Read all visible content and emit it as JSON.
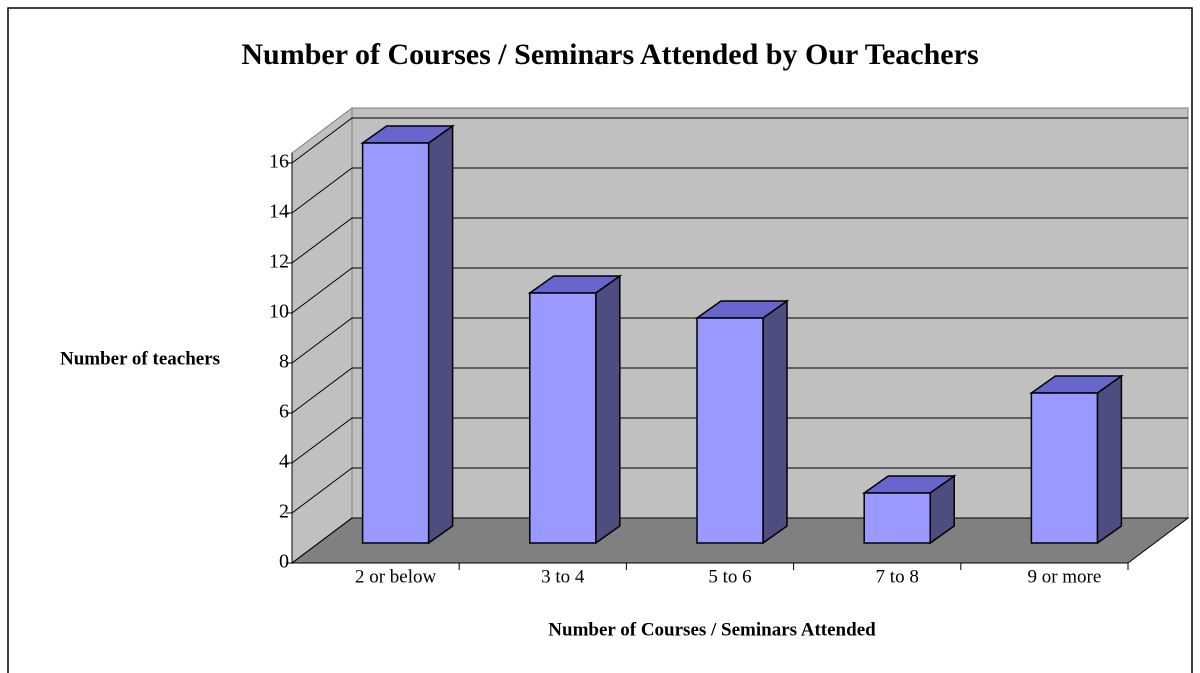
{
  "chart_data": {
    "type": "bar3d",
    "title": "Number of Courses / Seminars Attended by Our Teachers",
    "x_label": "Number of Courses / Seminars Attended",
    "y_label": "Number of teachers",
    "categories": [
      "2 or below",
      "3 to 4",
      "5 to 6",
      "7 to 8",
      "9 or more"
    ],
    "values": [
      16,
      10,
      9,
      2,
      6
    ],
    "color": "#9999ff",
    "ylim": [
      0,
      16
    ],
    "yticks": [
      0,
      2,
      4,
      6,
      8,
      10,
      12,
      14,
      16
    ],
    "grid": true
  }
}
